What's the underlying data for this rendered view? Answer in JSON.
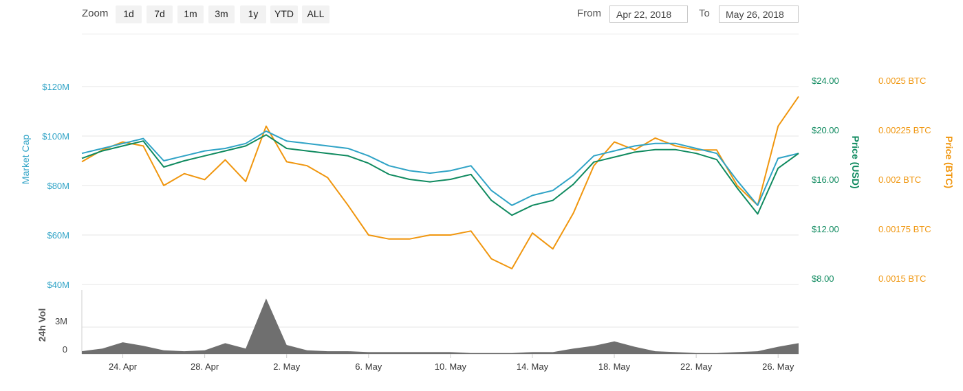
{
  "toolbar": {
    "zoom_label": "Zoom",
    "zoom_buttons": [
      "1d",
      "7d",
      "1m",
      "3m",
      "1y",
      "YTD",
      "ALL"
    ],
    "from_label": "From",
    "from_value": "Apr 22, 2018",
    "to_label": "To",
    "to_value": "May 26, 2018"
  },
  "colors": {
    "market_cap": "#2fa3c6",
    "price_usd": "#0f8a5f",
    "price_btc": "#f0960e",
    "volume": "#6f6f6f",
    "grid": "#e6e6e6"
  },
  "chart_data": {
    "type": "line",
    "x_tick_labels": [
      "24. Apr",
      "28. Apr",
      "2. May",
      "6. May",
      "10. May",
      "14. May",
      "18. May",
      "22. May",
      "26. May"
    ],
    "axes": {
      "market_cap": {
        "label": "Market Cap",
        "ticks": [
          "$40M",
          "$60M",
          "$80M",
          "$100M",
          "$120M"
        ],
        "range": [
          40,
          120
        ],
        "unit": "M USD"
      },
      "price_usd": {
        "label": "Price (USD)",
        "ticks": [
          "$8.00",
          "$12.00",
          "$16.00",
          "$20.00",
          "$24.00"
        ],
        "range": [
          8,
          24
        ]
      },
      "price_btc": {
        "label": "Price (BTC)",
        "ticks": [
          "0.0015 BTC",
          "0.00175 BTC",
          "0.002 BTC",
          "0.00225 BTC",
          "0.0025 BTC"
        ],
        "range": [
          0.0015,
          0.0025
        ]
      },
      "volume": {
        "label": "24h Vol",
        "ticks": [
          "0",
          "3M"
        ],
        "range": [
          0,
          6
        ]
      }
    },
    "x_dates": [
      "Apr 22",
      "Apr 23",
      "Apr 24",
      "Apr 25",
      "Apr 26",
      "Apr 27",
      "Apr 28",
      "Apr 29",
      "Apr 30",
      "May 1",
      "May 2",
      "May 3",
      "May 4",
      "May 5",
      "May 6",
      "May 7",
      "May 8",
      "May 9",
      "May 10",
      "May 11",
      "May 12",
      "May 13",
      "May 14",
      "May 15",
      "May 16",
      "May 17",
      "May 18",
      "May 19",
      "May 20",
      "May 21",
      "May 22",
      "May 23",
      "May 24",
      "May 25",
      "May 26",
      "May 27"
    ],
    "series": [
      {
        "key": "market_cap",
        "values": [
          93,
          95,
          97,
          99,
          90,
          92,
          94,
          95,
          97,
          102,
          98,
          97,
          96,
          95,
          92,
          88,
          86,
          85,
          86,
          88,
          78,
          72,
          76,
          78,
          84,
          92,
          94,
          96,
          97,
          97,
          95,
          93,
          82,
          72,
          91,
          93
        ]
      },
      {
        "key": "price_usd",
        "values": [
          18.2,
          18.8,
          19.2,
          19.6,
          17.5,
          18.0,
          18.4,
          18.8,
          19.2,
          20.1,
          19.0,
          18.8,
          18.6,
          18.4,
          17.8,
          16.9,
          16.5,
          16.3,
          16.5,
          16.9,
          14.8,
          13.6,
          14.4,
          14.8,
          16.1,
          17.9,
          18.3,
          18.7,
          18.9,
          18.9,
          18.6,
          18.1,
          15.8,
          13.7,
          17.4,
          18.6
        ]
      },
      {
        "key": "price_btc",
        "values": [
          0.00212,
          0.00218,
          0.00222,
          0.0022,
          0.002,
          0.00206,
          0.00203,
          0.00213,
          0.00202,
          0.0023,
          0.00212,
          0.0021,
          0.00204,
          0.0019,
          0.00175,
          0.00173,
          0.00173,
          0.00175,
          0.00175,
          0.00177,
          0.00163,
          0.00158,
          0.00176,
          0.00168,
          0.00186,
          0.0021,
          0.00222,
          0.00218,
          0.00224,
          0.0022,
          0.00218,
          0.00218,
          0.002,
          0.0019,
          0.0023,
          0.00245
        ]
      },
      {
        "key": "volume",
        "values": [
          0.3,
          0.6,
          1.3,
          0.9,
          0.4,
          0.3,
          0.4,
          1.2,
          0.6,
          6.2,
          1.0,
          0.4,
          0.3,
          0.3,
          0.2,
          0.2,
          0.2,
          0.2,
          0.2,
          0.1,
          0.1,
          0.1,
          0.2,
          0.2,
          0.6,
          0.9,
          1.4,
          0.8,
          0.3,
          0.2,
          0.1,
          0.1,
          0.2,
          0.3,
          0.8,
          1.2
        ]
      }
    ]
  }
}
